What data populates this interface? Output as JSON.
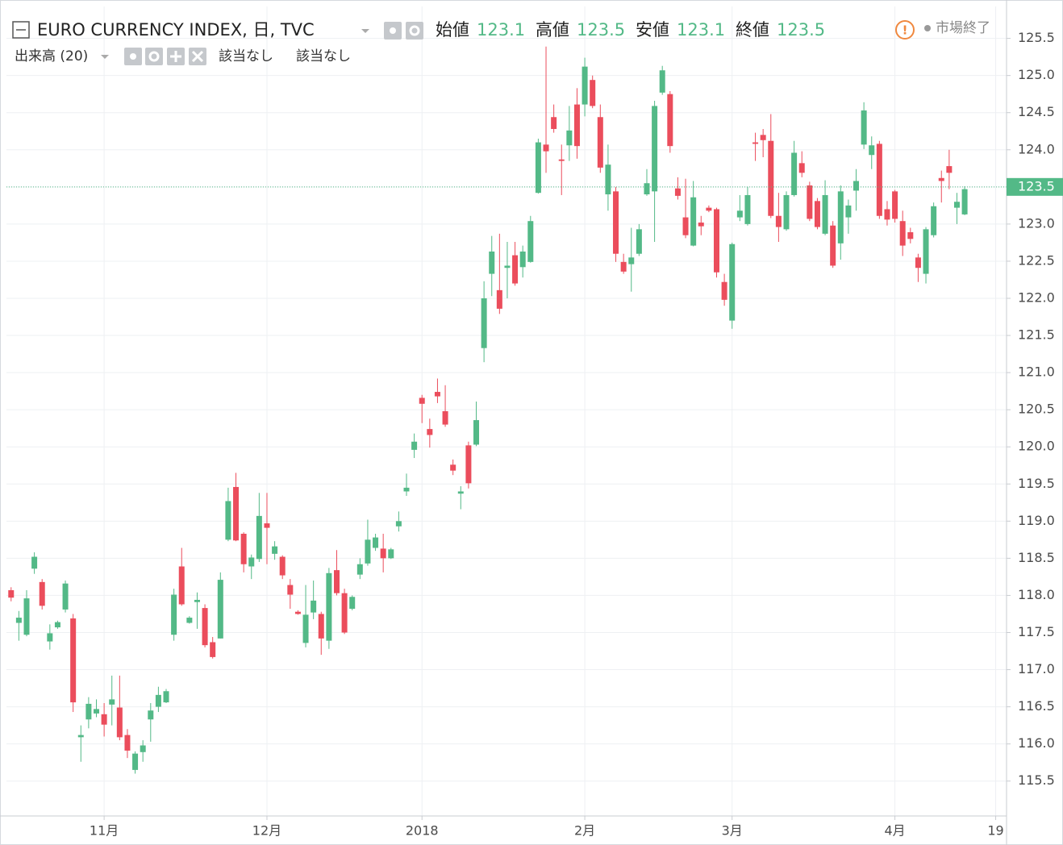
{
  "chart_data": {
    "type": "candlestick",
    "title": "EURO CURRENCY INDEX, 日, TVC",
    "ohlc_legend": [
      {
        "label": "始値",
        "value": 123.1
      },
      {
        "label": "高値",
        "value": 123.5
      },
      {
        "label": "安値",
        "value": 123.1
      },
      {
        "label": "終値",
        "value": 123.5
      }
    ],
    "status": "市場終了",
    "volume_label": "出来高 (20)",
    "volume_values": [
      "該当なし",
      "該当なし"
    ],
    "up_color": "#53b987",
    "down_color": "#eb4d5c",
    "last_price": 123.5,
    "grid": true,
    "ylim": [
      115.03,
      125.93
    ],
    "yticks": [
      115.5,
      {
        "value": 116,
        "label": "116.0"
      },
      116.5,
      {
        "value": 117,
        "label": "117.0"
      },
      117.5,
      {
        "value": 118,
        "label": "118.0"
      },
      118.5,
      {
        "value": 119,
        "label": "119.0"
      },
      119.5,
      {
        "value": 120,
        "label": "120.0"
      },
      120.5,
      {
        "value": 121,
        "label": "121.0"
      },
      121.5,
      {
        "value": 122,
        "label": "122.0"
      },
      122.5,
      {
        "value": 123,
        "label": "123.0"
      },
      123.5,
      {
        "value": 124,
        "label": "124.0"
      },
      124.5,
      {
        "value": 125,
        "label": "125.0"
      },
      125.5
    ],
    "xlim": [
      -0.6,
      128.4
    ],
    "xticks": [
      {
        "value": 12,
        "label": "11月"
      },
      {
        "value": 33,
        "label": "12月"
      },
      {
        "value": 53,
        "label": "2018"
      },
      {
        "value": 74,
        "label": "2月"
      },
      {
        "value": 93,
        "label": "3月"
      },
      {
        "value": 114,
        "label": "4月"
      },
      {
        "value": 127,
        "label": "19"
      }
    ],
    "open": [
      118.07,
      117.63,
      117.47,
      118.36,
      118.18,
      117.38,
      117.57,
      117.81,
      117.69,
      116.09,
      116.33,
      116.41,
      116.4,
      116.53,
      116.49,
      116.12,
      115.65,
      115.89,
      116.33,
      116.5,
      116.56,
      117.47,
      118.39,
      117.63,
      117.91,
      117.83,
      117.37,
      117.42,
      118.75,
      119.46,
      118.83,
      118.39,
      118.49,
      118.97,
      118.56,
      118.52,
      118.14,
      117.78,
      117.36,
      117.77,
      117.75,
      117.39,
      118.34,
      118.03,
      117.82,
      118.28,
      118.43,
      118.64,
      118.63,
      118.5,
      118.93,
      119.4,
      119.96,
      120.66,
      120.24,
      120.74,
      120.48,
      119.76,
      119.37,
      120.02,
      120.03,
      121.33,
      122.33,
      122.11,
      122.41,
      122.58,
      122.42,
      122.49,
      123.42,
      124.07,
      124.44,
      123.87,
      124.06,
      124.61,
      124.61,
      124.94,
      124.44,
      123.4,
      123.44,
      122.49,
      122.46,
      122.6,
      123.4,
      123.44,
      124.77,
      124.75,
      123.48,
      123.09,
      122.71,
      123.02,
      123.22,
      123.2,
      122.22,
      121.7,
      123.09,
      123.0,
      124.1,
      124.2,
      124.12,
      123.11,
      122.93,
      123.39,
      123.82,
      123.52,
      123.31,
      122.87,
      122.98,
      122.74,
      123.09,
      123.45,
      124.07,
      123.93,
      124.08,
      123.2,
      123.44,
      123.04,
      122.89,
      122.55,
      122.33,
      122.85,
      123.62,
      123.78,
      123.22,
      123.13
    ],
    "high": [
      118.11,
      117.79,
      118.07,
      118.58,
      118.22,
      117.61,
      117.66,
      118.2,
      117.75,
      116.25,
      116.63,
      116.6,
      116.55,
      116.92,
      116.92,
      116.2,
      115.9,
      116.05,
      116.55,
      116.77,
      116.74,
      118.09,
      118.64,
      117.72,
      118.04,
      117.88,
      117.44,
      118.31,
      119.45,
      119.65,
      118.85,
      118.55,
      119.38,
      119.38,
      118.73,
      118.54,
      118.22,
      117.8,
      118.14,
      118.2,
      117.78,
      118.37,
      118.61,
      118.09,
      118.0,
      118.5,
      119.02,
      118.83,
      118.83,
      118.64,
      119.13,
      119.64,
      120.18,
      120.7,
      120.38,
      120.92,
      120.83,
      119.83,
      119.47,
      120.07,
      120.61,
      122.23,
      122.84,
      122.87,
      122.76,
      122.76,
      122.71,
      123.11,
      124.15,
      125.39,
      124.61,
      124.07,
      124.59,
      124.83,
      125.24,
      125.0,
      124.61,
      124.07,
      123.5,
      122.6,
      122.95,
      123.0,
      123.74,
      124.66,
      125.13,
      124.79,
      123.63,
      123.61,
      123.58,
      123.11,
      123.25,
      123.22,
      122.33,
      122.75,
      123.39,
      123.5,
      124.23,
      124.28,
      124.48,
      123.42,
      123.44,
      124.12,
      123.98,
      123.57,
      123.35,
      123.59,
      123.04,
      123.52,
      123.33,
      123.74,
      124.64,
      124.18,
      124.12,
      123.31,
      123.46,
      123.18,
      122.95,
      122.6,
      122.96,
      123.29,
      123.72,
      124.0,
      123.42,
      123.51
    ],
    "low": [
      117.92,
      117.39,
      117.45,
      118.29,
      117.81,
      117.27,
      117.55,
      117.77,
      116.43,
      115.76,
      116.21,
      116.36,
      116.1,
      116.25,
      116.05,
      115.81,
      115.6,
      115.76,
      116.03,
      116.43,
      116.55,
      117.39,
      117.86,
      117.62,
      117.55,
      117.3,
      117.15,
      117.42,
      118.73,
      118.73,
      118.31,
      118.22,
      118.45,
      118.42,
      118.48,
      118.22,
      117.82,
      117.74,
      117.3,
      117.68,
      117.2,
      117.28,
      118.0,
      117.48,
      117.8,
      118.22,
      118.4,
      118.6,
      118.31,
      118.49,
      118.86,
      119.34,
      119.85,
      120.32,
      119.99,
      120.59,
      120.27,
      119.62,
      119.16,
      119.44,
      120.01,
      121.14,
      122.03,
      121.79,
      122.0,
      122.17,
      122.28,
      122.48,
      123.41,
      123.69,
      124.23,
      123.39,
      123.85,
      123.88,
      124.45,
      124.56,
      123.69,
      123.18,
      122.49,
      122.33,
      122.09,
      122.57,
      123.38,
      122.76,
      124.74,
      123.96,
      123.33,
      122.81,
      122.7,
      122.85,
      123.16,
      122.28,
      121.9,
      121.59,
      123.04,
      122.98,
      123.85,
      123.9,
      123.08,
      122.76,
      122.91,
      123.37,
      123.63,
      123.04,
      122.93,
      122.85,
      122.41,
      122.52,
      122.87,
      123.18,
      124.01,
      123.74,
      123.07,
      122.98,
      123.02,
      122.57,
      122.74,
      122.22,
      122.2,
      122.82,
      123.29,
      123.47,
      123.0,
      123.12
    ],
    "close": [
      117.97,
      117.7,
      117.96,
      118.52,
      117.86,
      117.49,
      117.64,
      118.16,
      116.56,
      116.12,
      116.54,
      116.47,
      116.26,
      116.6,
      116.09,
      115.91,
      115.87,
      115.98,
      116.45,
      116.66,
      116.71,
      118.01,
      117.88,
      117.7,
      117.94,
      117.33,
      117.17,
      118.21,
      119.27,
      118.74,
      118.42,
      118.51,
      119.07,
      118.91,
      118.66,
      118.27,
      118.01,
      117.75,
      117.74,
      117.93,
      117.42,
      118.3,
      118.03,
      117.5,
      117.98,
      118.42,
      118.75,
      118.78,
      118.5,
      118.62,
      119.0,
      119.45,
      120.07,
      120.58,
      120.16,
      120.68,
      120.3,
      119.68,
      119.4,
      119.51,
      120.36,
      122.0,
      122.63,
      121.86,
      122.44,
      122.2,
      122.63,
      123.04,
      124.1,
      123.98,
      124.28,
      123.85,
      124.26,
      124.05,
      125.12,
      124.59,
      123.76,
      123.8,
      122.6,
      122.36,
      122.55,
      122.93,
      123.55,
      124.59,
      125.07,
      124.05,
      123.38,
      122.85,
      123.36,
      122.97,
      123.18,
      122.35,
      121.98,
      122.73,
      123.18,
      123.39,
      124.08,
      124.13,
      123.11,
      122.96,
      123.39,
      123.96,
      123.69,
      123.07,
      122.96,
      123.39,
      122.44,
      123.44,
      123.25,
      123.58,
      124.53,
      124.06,
      123.11,
      123.06,
      123.07,
      122.71,
      122.8,
      122.41,
      122.93,
      123.24,
      123.58,
      123.69,
      123.3,
      123.47
    ]
  }
}
